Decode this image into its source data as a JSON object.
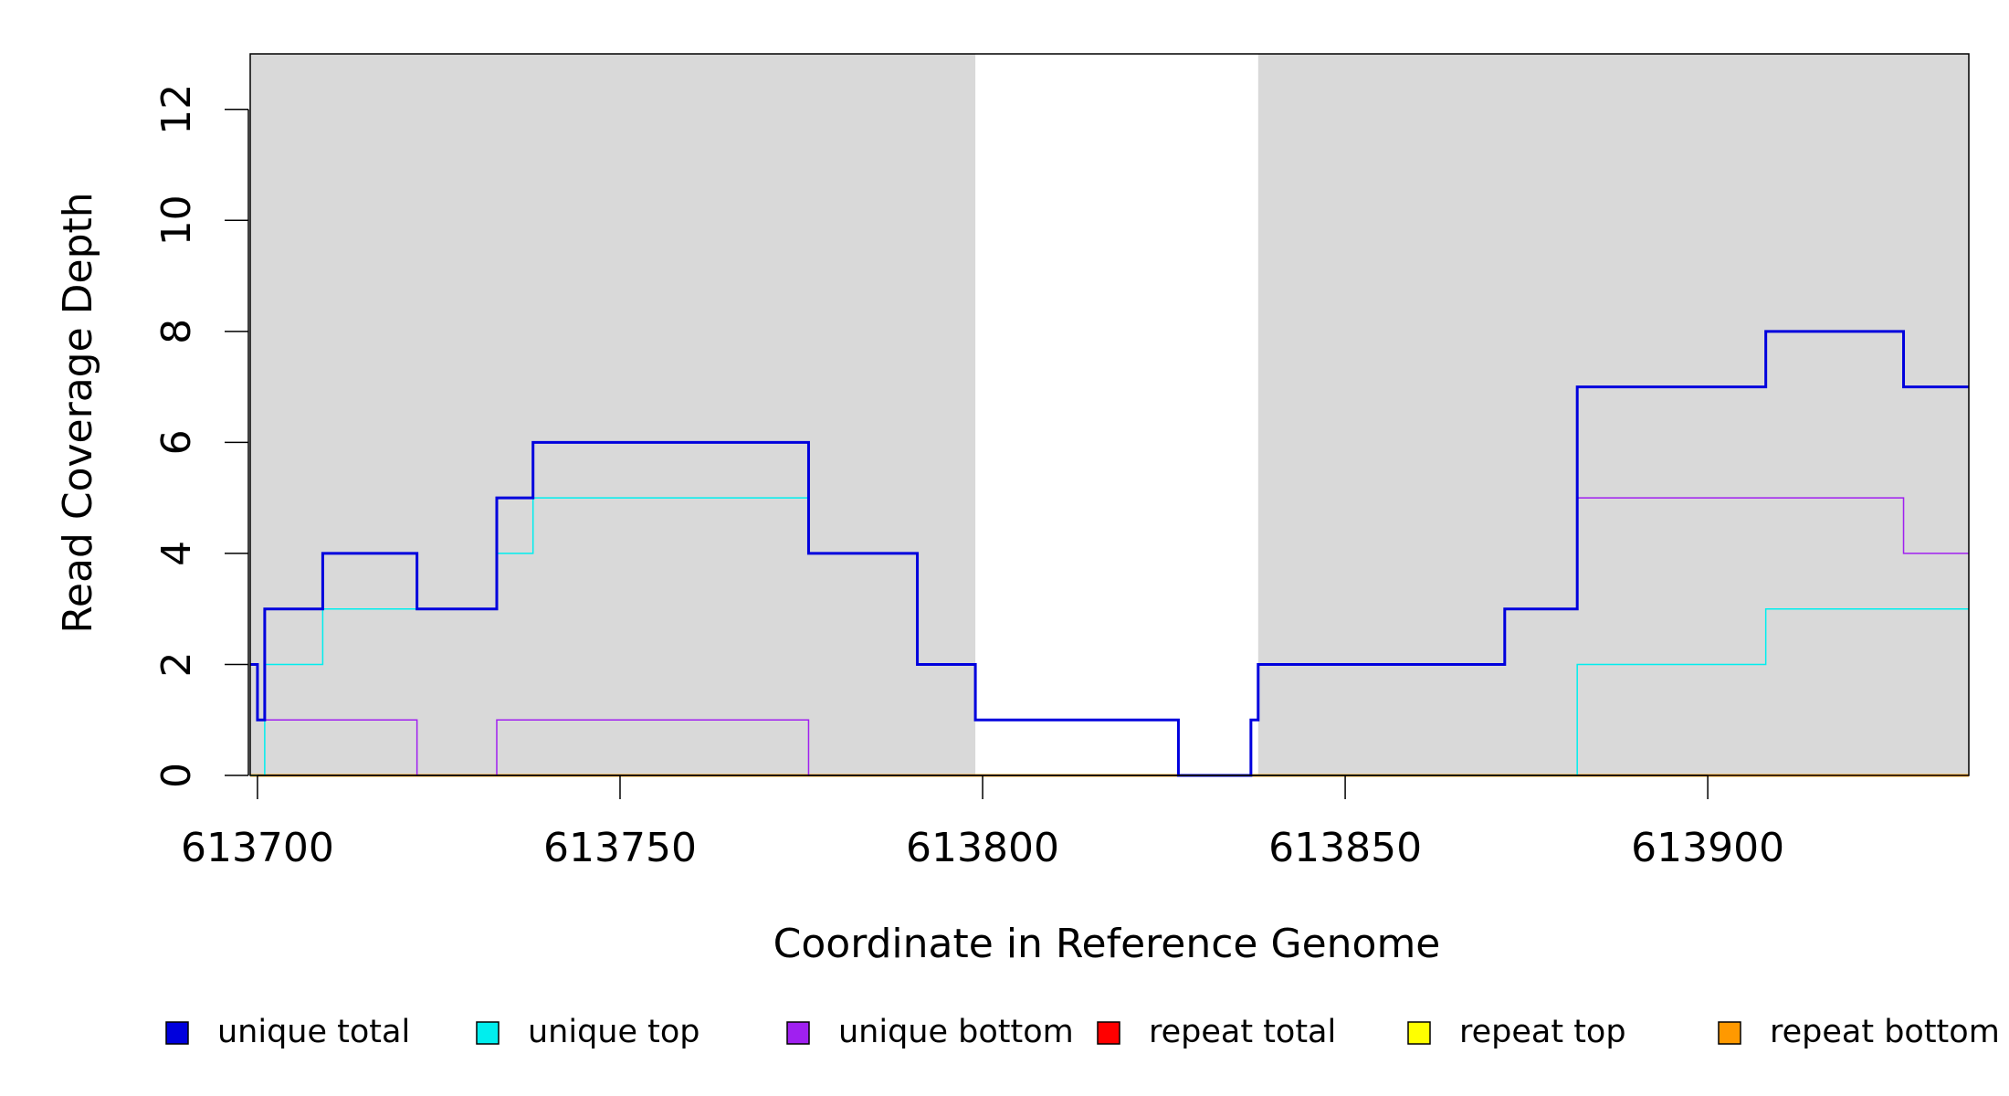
{
  "chart_data": {
    "type": "line",
    "xlabel": "Coordinate in Reference Genome",
    "ylabel": "Read Coverage Depth",
    "xlim": [
      613699,
      613936
    ],
    "ylim": [
      0,
      13
    ],
    "x_ticks": [
      613700,
      613750,
      613800,
      613850,
      613900
    ],
    "y_ticks": [
      0,
      2,
      4,
      6,
      8,
      10,
      12
    ],
    "shaded_regions": [
      [
        613699,
        613799
      ],
      [
        613838,
        613936
      ]
    ],
    "shade_color": "#d9d9d9",
    "legend_position": "bottom",
    "series": [
      {
        "name": "unique total",
        "color": "#0000dd",
        "step_points": [
          [
            613699,
            2
          ],
          [
            613700,
            1
          ],
          [
            613701,
            3
          ],
          [
            613709,
            4
          ],
          [
            613722,
            3
          ],
          [
            613733,
            5
          ],
          [
            613738,
            6
          ],
          [
            613776,
            4
          ],
          [
            613791,
            2
          ],
          [
            613799,
            1
          ],
          [
            613827,
            0
          ],
          [
            613837,
            1
          ],
          [
            613838,
            2
          ],
          [
            613872,
            3
          ],
          [
            613882,
            7
          ],
          [
            613908,
            8
          ],
          [
            613927,
            7
          ],
          [
            613936,
            7
          ]
        ]
      },
      {
        "name": "unique top",
        "color": "#00eeee",
        "step_points": [
          [
            613699,
            0
          ],
          [
            613701,
            2
          ],
          [
            613709,
            3
          ],
          [
            613733,
            4
          ],
          [
            613738,
            5
          ],
          [
            613776,
            4
          ],
          [
            613791,
            2
          ],
          [
            613799,
            1
          ],
          [
            613827,
            0
          ],
          [
            613882,
            2
          ],
          [
            613908,
            3
          ],
          [
            613936,
            3
          ]
        ]
      },
      {
        "name": "unique bottom",
        "color": "#a020f0",
        "step_points": [
          [
            613699,
            2
          ],
          [
            613700,
            1
          ],
          [
            613722,
            0
          ],
          [
            613733,
            1
          ],
          [
            613776,
            0
          ],
          [
            613837,
            1
          ],
          [
            613838,
            2
          ],
          [
            613872,
            3
          ],
          [
            613882,
            5
          ],
          [
            613927,
            4
          ],
          [
            613936,
            4
          ]
        ]
      },
      {
        "name": "repeat total",
        "color": "#ff0000",
        "step_points": [
          [
            613699,
            0
          ],
          [
            613936,
            0
          ]
        ]
      },
      {
        "name": "repeat top",
        "color": "#ffff00",
        "step_points": [
          [
            613699,
            0
          ],
          [
            613936,
            0
          ]
        ]
      },
      {
        "name": "repeat bottom",
        "color": "#ff9900",
        "step_points": [
          [
            613699,
            0
          ],
          [
            613936,
            0
          ]
        ]
      }
    ]
  }
}
